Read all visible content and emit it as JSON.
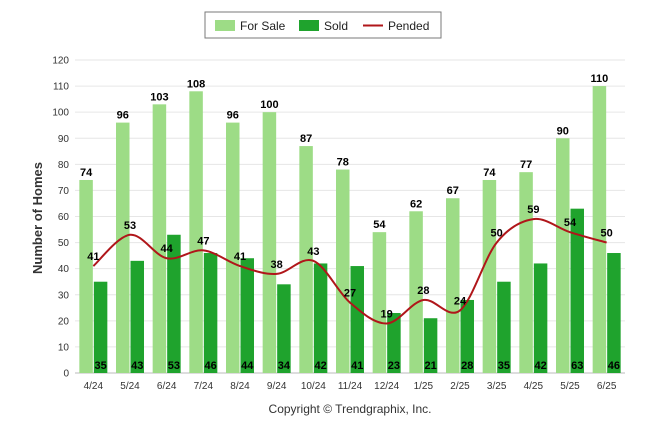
{
  "chart_data": {
    "type": "bar",
    "categories": [
      "4/24",
      "5/24",
      "6/24",
      "7/24",
      "8/24",
      "9/24",
      "10/24",
      "11/24",
      "12/24",
      "1/25",
      "2/25",
      "3/25",
      "4/25",
      "5/25",
      "6/25"
    ],
    "series": [
      {
        "name": "For Sale",
        "type": "bar",
        "color": "#9ddc86",
        "values": [
          74,
          96,
          103,
          108,
          96,
          100,
          87,
          78,
          54,
          62,
          67,
          74,
          77,
          90,
          110
        ]
      },
      {
        "name": "Sold",
        "type": "bar",
        "color": "#1fa32d",
        "values": [
          35,
          43,
          53,
          46,
          44,
          34,
          42,
          41,
          23,
          21,
          28,
          35,
          42,
          63,
          46
        ]
      },
      {
        "name": "Pended",
        "type": "line",
        "color": "#b0161a",
        "values": [
          41,
          53,
          44,
          47,
          41,
          38,
          43,
          27,
          19,
          28,
          24,
          50,
          59,
          54,
          50
        ]
      }
    ],
    "ylabel": "Number of Homes",
    "xlabel": "",
    "ylim": [
      0,
      120
    ],
    "yticks": [
      0,
      10,
      20,
      30,
      40,
      50,
      60,
      70,
      80,
      90,
      100,
      110,
      120
    ],
    "grid": true,
    "legend_position": "top-center"
  },
  "footer": {
    "copyright": "Copyright © Trendgraphix, Inc."
  }
}
